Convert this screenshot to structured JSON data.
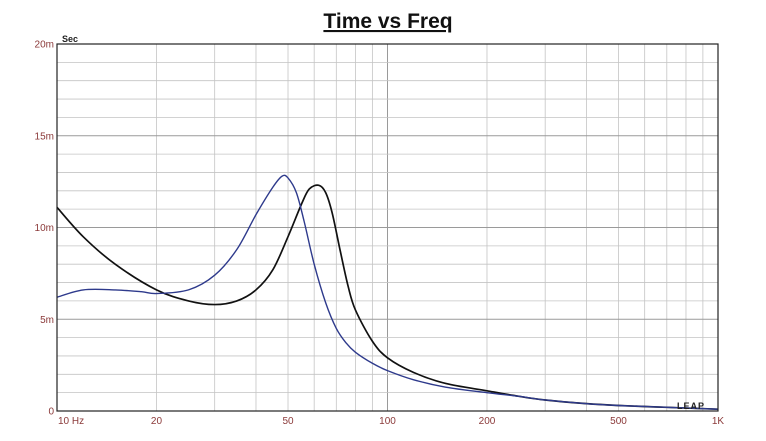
{
  "chart_data": {
    "type": "line",
    "title": "Time vs Freq",
    "ylabel": "Sec",
    "x_scale": "log",
    "xlim": [
      10,
      1000
    ],
    "ylim": [
      0,
      0.02
    ],
    "grid": true,
    "logo": "LEAP",
    "x_ticks": [
      {
        "value": 10,
        "label": "10  Hz"
      },
      {
        "value": 20,
        "label": "20"
      },
      {
        "value": 50,
        "label": "50"
      },
      {
        "value": 100,
        "label": "100"
      },
      {
        "value": 200,
        "label": "200"
      },
      {
        "value": 500,
        "label": "500"
      },
      {
        "value": 1000,
        "label": "1K"
      }
    ],
    "y_ticks": [
      {
        "value": 0,
        "label": "0"
      },
      {
        "value": 0.005,
        "label": "5m"
      },
      {
        "value": 0.01,
        "label": "10m"
      },
      {
        "value": 0.015,
        "label": "15m"
      },
      {
        "value": 0.02,
        "label": "20m"
      }
    ],
    "series": [
      {
        "color": "#111111",
        "x": [
          10,
          12,
          15,
          20,
          25,
          30,
          35,
          40,
          45,
          50,
          55,
          58,
          62,
          65,
          68,
          72,
          76,
          80,
          90,
          100,
          120,
          150,
          200,
          250,
          300,
          400,
          500,
          700,
          1000
        ],
        "y": [
          0.0111,
          0.0095,
          0.008,
          0.0066,
          0.006,
          0.0058,
          0.006,
          0.0066,
          0.0077,
          0.0095,
          0.0113,
          0.0121,
          0.0123,
          0.0119,
          0.0108,
          0.0087,
          0.0068,
          0.0055,
          0.0038,
          0.0029,
          0.0021,
          0.0015,
          0.0011,
          0.0008,
          0.0006,
          0.0004,
          0.0003,
          0.0002,
          0.0001
        ]
      },
      {
        "color": "#2e3a8c",
        "x": [
          10,
          12,
          15,
          18,
          20,
          25,
          30,
          35,
          40,
          45,
          48,
          50,
          53,
          56,
          60,
          65,
          70,
          75,
          80,
          90,
          100,
          120,
          150,
          200,
          250,
          300,
          400,
          500,
          700,
          1000
        ],
        "y": [
          0.0062,
          0.0066,
          0.0066,
          0.0065,
          0.0064,
          0.0066,
          0.0074,
          0.0088,
          0.0107,
          0.0122,
          0.0128,
          0.0127,
          0.0119,
          0.0103,
          0.008,
          0.0059,
          0.0045,
          0.0037,
          0.0032,
          0.0026,
          0.0022,
          0.0017,
          0.0013,
          0.001,
          0.0008,
          0.0006,
          0.0004,
          0.0003,
          0.0002,
          0.0001
        ]
      }
    ]
  }
}
